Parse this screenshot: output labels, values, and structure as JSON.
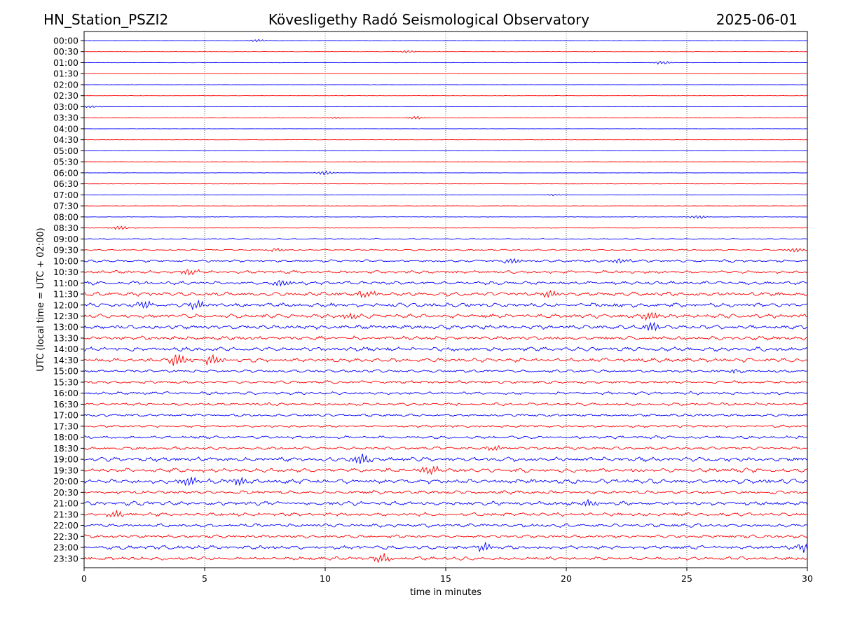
{
  "chart_data": {
    "type": "line",
    "station": "HN_Station_PSZI2",
    "title": "Kövesligethy Radó Seismological Observatory",
    "date": "2025-06-01",
    "xlabel": "time in minutes",
    "ylabel": "UTC (local time = UTC + 02:00)",
    "xlim": [
      0,
      30
    ],
    "x_ticks": [
      0,
      5,
      10,
      15,
      20,
      25,
      30
    ],
    "x_tick_labels": [
      "0",
      "5",
      "10",
      "15",
      "20",
      "25",
      "30"
    ],
    "vertical_gridlines_at": [
      5,
      10,
      15,
      20,
      25
    ],
    "trace_colors": [
      "#0000ff",
      "#ff0000"
    ],
    "row_labels": [
      "00:00",
      "00:30",
      "01:00",
      "01:30",
      "02:00",
      "02:30",
      "03:00",
      "03:30",
      "04:00",
      "04:30",
      "05:00",
      "05:30",
      "06:00",
      "06:30",
      "07:00",
      "07:30",
      "08:00",
      "08:30",
      "09:00",
      "09:30",
      "10:00",
      "10:30",
      "11:00",
      "11:30",
      "12:00",
      "12:30",
      "13:00",
      "13:30",
      "14:00",
      "14:30",
      "15:00",
      "15:30",
      "16:00",
      "16:30",
      "17:00",
      "17:30",
      "18:00",
      "18:30",
      "19:00",
      "19:30",
      "20:00",
      "20:30",
      "21:00",
      "21:30",
      "22:00",
      "22:30",
      "23:00",
      "23:30"
    ],
    "noise_level": [
      0.5,
      0.5,
      0.6,
      0.4,
      0.5,
      0.4,
      0.5,
      0.6,
      0.4,
      0.5,
      0.5,
      0.5,
      0.4,
      0.4,
      0.6,
      0.5,
      0.6,
      0.7,
      1.0,
      1.3,
      2.2,
      2.6,
      3.0,
      3.4,
      3.6,
      3.6,
      3.6,
      3.4,
      3.6,
      3.4,
      2.4,
      2.4,
      2.6,
      2.6,
      2.2,
      2.2,
      2.6,
      2.6,
      3.6,
      3.6,
      4.0,
      3.0,
      3.4,
      3.0,
      3.0,
      2.6,
      3.2,
      3.0
    ],
    "events": [
      {
        "row": "00:00",
        "minute": 7.2,
        "amp": 2.0
      },
      {
        "row": "00:30",
        "minute": 13.4,
        "amp": 2.0
      },
      {
        "row": "01:00",
        "minute": 24.0,
        "amp": 2.5
      },
      {
        "row": "03:00",
        "minute": 0.3,
        "amp": 1.5
      },
      {
        "row": "03:30",
        "minute": 13.8,
        "amp": 2.5
      },
      {
        "row": "03:30",
        "minute": 10.5,
        "amp": 1.5
      },
      {
        "row": "06:00",
        "minute": 10.0,
        "amp": 3.0
      },
      {
        "row": "07:00",
        "minute": 19.5,
        "amp": 1.5
      },
      {
        "row": "08:00",
        "minute": 25.5,
        "amp": 3.0
      },
      {
        "row": "08:30",
        "minute": 1.5,
        "amp": 3.0
      },
      {
        "row": "09:30",
        "minute": 8.0,
        "amp": 3.0
      },
      {
        "row": "09:30",
        "minute": 29.5,
        "amp": 3.5
      },
      {
        "row": "10:00",
        "minute": 17.8,
        "amp": 4.5
      },
      {
        "row": "10:00",
        "minute": 22.3,
        "amp": 4.0
      },
      {
        "row": "10:30",
        "minute": 4.4,
        "amp": 5.0
      },
      {
        "row": "11:00",
        "minute": 8.2,
        "amp": 5.0
      },
      {
        "row": "11:30",
        "minute": 19.3,
        "amp": 6.0
      },
      {
        "row": "11:30",
        "minute": 11.7,
        "amp": 6.0
      },
      {
        "row": "12:00",
        "minute": 2.5,
        "amp": 6.0
      },
      {
        "row": "12:00",
        "minute": 4.7,
        "amp": 6.0
      },
      {
        "row": "12:30",
        "minute": 11.0,
        "amp": 6.0
      },
      {
        "row": "12:30",
        "minute": 23.5,
        "amp": 6.0
      },
      {
        "row": "13:00",
        "minute": 23.6,
        "amp": 7.0
      },
      {
        "row": "14:30",
        "minute": 3.9,
        "amp": 10.0
      },
      {
        "row": "14:30",
        "minute": 5.3,
        "amp": 8.0
      },
      {
        "row": "15:00",
        "minute": 27.0,
        "amp": 3.5
      },
      {
        "row": "18:30",
        "minute": 17.0,
        "amp": 4.0
      },
      {
        "row": "19:00",
        "minute": 11.5,
        "amp": 7.0
      },
      {
        "row": "19:30",
        "minute": 14.3,
        "amp": 7.0
      },
      {
        "row": "20:00",
        "minute": 4.4,
        "amp": 7.0
      },
      {
        "row": "20:00",
        "minute": 6.5,
        "amp": 6.0
      },
      {
        "row": "21:00",
        "minute": 21.0,
        "amp": 5.0
      },
      {
        "row": "21:30",
        "minute": 1.3,
        "amp": 6.0
      },
      {
        "row": "23:00",
        "minute": 16.6,
        "amp": 7.0
      },
      {
        "row": "23:00",
        "minute": 29.9,
        "amp": 7.0
      },
      {
        "row": "23:30",
        "minute": 12.4,
        "amp": 7.0
      }
    ]
  }
}
